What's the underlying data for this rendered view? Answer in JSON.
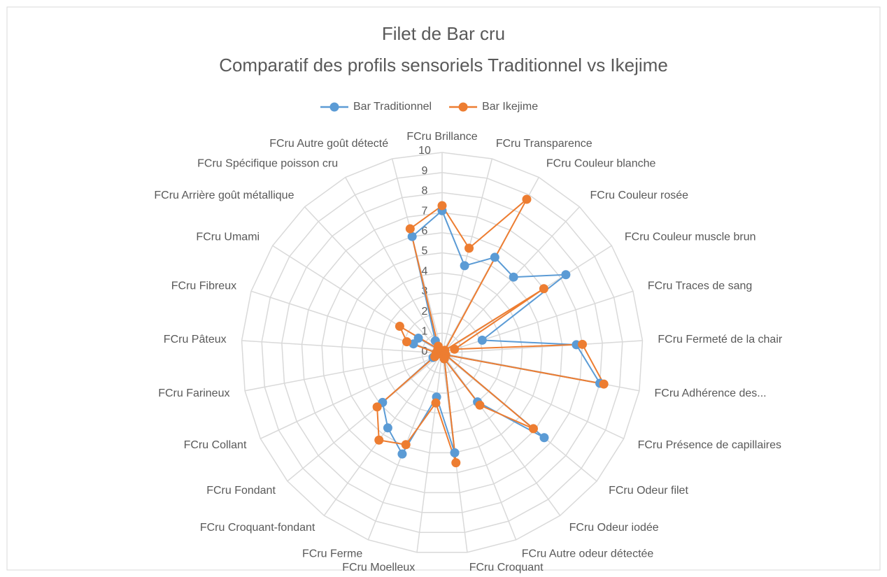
{
  "chart_data": {
    "type": "radar",
    "title": "Filet de Bar cru",
    "subtitle": "Comparatif des profils sensoriels Traditionnel vs Ikejime",
    "categories": [
      "FCru Brillance",
      "FCru Transparence",
      "FCru Couleur blanche",
      "FCru Couleur rosée",
      "FCru Couleur muscle brun",
      "FCru Traces de sang",
      "FCru Fermeté de la chair",
      "FCru Adhérence des...",
      "FCru Présence de capillaires",
      "FCru Odeur filet",
      "FCru Odeur iodée",
      "FCru Autre odeur détectée",
      "FCru Croquant",
      "FCru Moelleux",
      "FCru Ferme",
      "FCru Croquant-fondant",
      "FCru Fondant",
      "FCru Collant",
      "FCru Farineux",
      "FCru Pâteux",
      "FCru Fibreux",
      "FCru Umami",
      "FCru Arrière goût métallique",
      "FCru Spécifique poisson cru",
      "FCru Autre goût détecté"
    ],
    "series": [
      {
        "name": "Bar Traditionnel",
        "color": "#5b9bd5",
        "values": [
          7.1,
          4.5,
          5.45,
          5.2,
          7.3,
          2.1,
          6.7,
          8.0,
          0.2,
          6.6,
          3.0,
          0.3,
          5.0,
          2.2,
          5.4,
          4.6,
          3.85,
          0.5,
          0.2,
          0.3,
          1.5,
          1.4,
          0.3,
          0.7,
          6.0
        ]
      },
      {
        "name": "Bar Ikejime",
        "color": "#ed7d31",
        "values": [
          7.35,
          5.4,
          8.75,
          0.2,
          6.0,
          0.65,
          7.0,
          8.2,
          0.2,
          5.9,
          3.2,
          0.3,
          5.5,
          2.5,
          4.9,
          5.35,
          4.2,
          0.4,
          0.2,
          0.3,
          1.85,
          2.5,
          0.3,
          0.4,
          6.4
        ]
      }
    ],
    "ylim": [
      0,
      10
    ],
    "yticks": [
      0,
      1,
      2,
      3,
      4,
      5,
      6,
      7,
      8,
      9,
      10
    ],
    "grid": true,
    "legend": "top"
  }
}
